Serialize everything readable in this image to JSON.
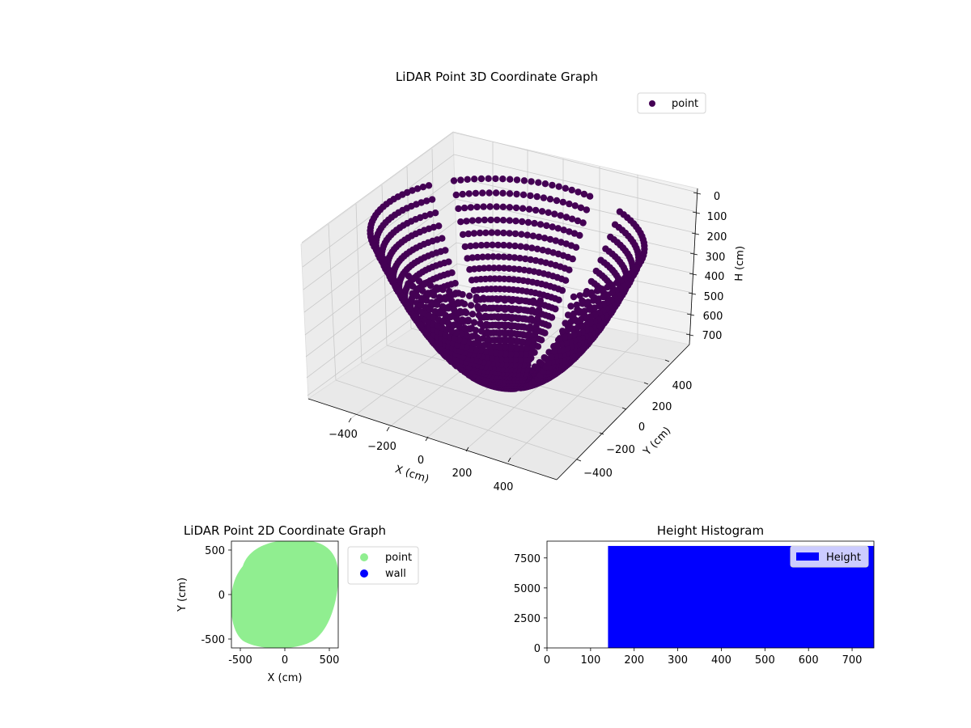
{
  "chart_data": [
    {
      "type": "scatter3d",
      "title": "LiDAR Point 3D Coordinate Graph",
      "xlabel": "X (cm)",
      "ylabel": "Y (cm)",
      "zlabel": "H (cm)",
      "x_ticks": [
        "−400",
        "−200",
        "0",
        "200",
        "400"
      ],
      "y_ticks": [
        "−400",
        "−200",
        "0",
        "200",
        "400"
      ],
      "z_ticks": [
        "0",
        "100",
        "200",
        "300",
        "400",
        "500",
        "600",
        "700"
      ],
      "xlim": [
        -550,
        550
      ],
      "ylim": [
        -550,
        550
      ],
      "zlim": [
        750,
        0
      ],
      "z_inverted": true,
      "grid": true,
      "legend_position": "top-right",
      "series": [
        {
          "name": "point",
          "color": "#440154"
        }
      ]
    },
    {
      "type": "scatter",
      "title": "LiDAR Point 2D Coordinate Graph",
      "xlabel": "X (cm)",
      "ylabel": "Y (cm)",
      "x_ticks": [
        -500,
        0,
        500
      ],
      "y_ticks": [
        -500,
        0,
        500
      ],
      "xlim": [
        -600,
        600
      ],
      "ylim": [
        -600,
        600
      ],
      "legend_position": "outside-right",
      "series": [
        {
          "name": "point",
          "color": "#90ee90"
        },
        {
          "name": "wall",
          "color": "#0000ff"
        }
      ]
    },
    {
      "type": "bar",
      "title": "Height Histogram",
      "xlabel": "",
      "ylabel": "",
      "x_ticks": [
        0,
        100,
        200,
        300,
        400,
        500,
        600,
        700
      ],
      "y_ticks": [
        0,
        2500,
        5000,
        7500
      ],
      "xlim": [
        0,
        750
      ],
      "ylim": [
        0,
        8900
      ],
      "bins": [
        {
          "start": 140,
          "end": 750,
          "value": 8500
        }
      ],
      "legend_position": "top-right",
      "series": [
        {
          "name": "Height",
          "color": "#0000ff"
        }
      ]
    }
  ]
}
